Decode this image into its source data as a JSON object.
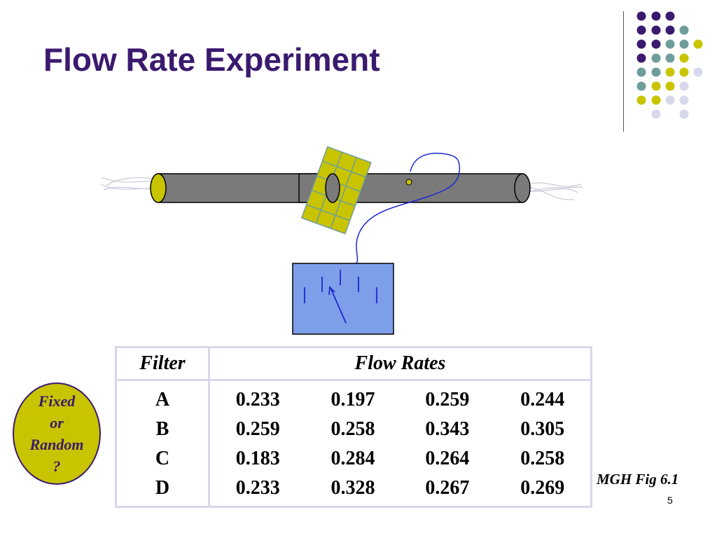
{
  "slide": {
    "title": "Flow Rate Experiment",
    "figure_credit": "MGH Fig 6.1",
    "page_number": "5"
  },
  "badge": {
    "lines": [
      "Fixed",
      "or",
      "Random",
      "?"
    ]
  },
  "table": {
    "headers": {
      "filter": "Filter",
      "values": "Flow  Rates"
    },
    "rows": [
      {
        "filter": "A",
        "values": [
          "0.233",
          "0.197",
          "0.259",
          "0.244"
        ]
      },
      {
        "filter": "B",
        "values": [
          "0.259",
          "0.258",
          "0.343",
          "0.305"
        ]
      },
      {
        "filter": "C",
        "values": [
          "0.183",
          "0.284",
          "0.264",
          "0.258"
        ]
      },
      {
        "filter": "D",
        "values": [
          "0.233",
          "0.328",
          "0.267",
          "0.269"
        ]
      }
    ]
  },
  "colors": {
    "title": "#3a1a6e",
    "purple": "#3a1a6e",
    "teal": "#6f9e9a",
    "yellow": "#c8c400",
    "lavender": "#d8d8ec",
    "pipe": "#7a7a7a",
    "meter": "#7d9ee8",
    "wire": "#1b2ad0"
  }
}
